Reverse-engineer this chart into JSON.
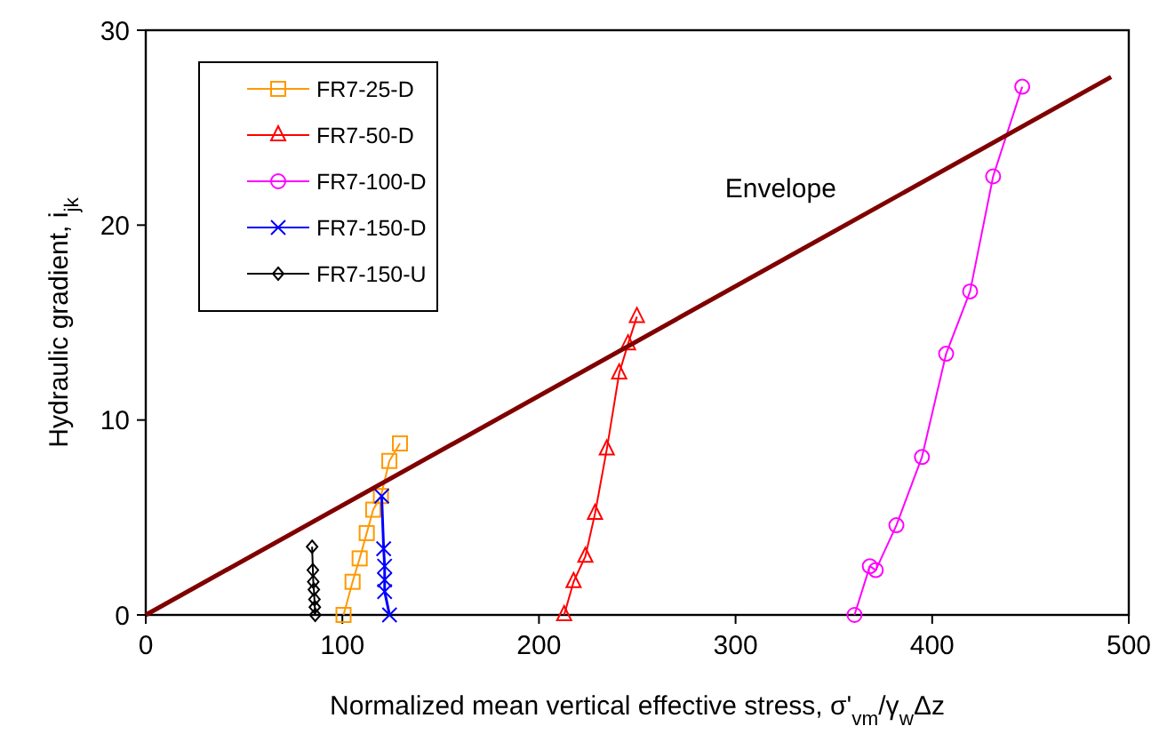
{
  "chart_data": {
    "type": "line",
    "xlabel": "Normalized mean vertical effective stress, σ'$_{vm}$/γ$_{w}$Δz",
    "ylabel": "Hydraulic gradient, i$_{jk}$",
    "xlim": [
      0,
      500
    ],
    "ylim": [
      0,
      30
    ],
    "xticks": [
      0,
      100,
      200,
      300,
      400,
      500
    ],
    "yticks": [
      0,
      10,
      20,
      30
    ],
    "grid": false,
    "legend": "top left",
    "line_style": "solid",
    "series": [
      {
        "name": "FR7-25-D",
        "color": "#ff9900",
        "marker": "square",
        "x": [
          100.6,
          105.2,
          108.8,
          112.4,
          115.7,
          119.6,
          123.9,
          129.3
        ],
        "values": [
          0,
          1.7,
          2.9,
          4.2,
          5.4,
          6.1,
          7.9,
          8.8
        ]
      },
      {
        "name": "FR7-50-D",
        "color": "#ff0000",
        "marker": "triangle",
        "x": [
          212.8,
          217.6,
          223.6,
          228.5,
          234.5,
          240.8,
          245.3,
          249.8
        ],
        "values": [
          0,
          1.7,
          3.0,
          5.2,
          8.5,
          12.4,
          13.9,
          15.3
        ]
      },
      {
        "name": "FR7-100-D",
        "color": "#ff00ff",
        "marker": "circle",
        "x": [
          360.5,
          368.3,
          371.3,
          381.8,
          394.8,
          407.1,
          419.3,
          431,
          445.8
        ],
        "values": [
          0,
          2.5,
          2.3,
          4.6,
          8.1,
          13.4,
          16.6,
          22.5,
          27.1
        ]
      },
      {
        "name": "FR7-150-D",
        "color": "#0000ff",
        "marker": "cross",
        "x": [
          124,
          121.5,
          121.5,
          121.5,
          121,
          120
        ],
        "values": [
          0,
          1.2,
          1.8,
          2.5,
          3.4,
          6.1
        ]
      },
      {
        "name": "FR7-150-U",
        "color": "#000000",
        "marker": "diamond",
        "x": [
          86.2,
          86,
          85.8,
          85.5,
          85.2,
          85,
          84.6
        ],
        "values": [
          0,
          0.4,
          0.8,
          1.3,
          1.7,
          2.3,
          3.5
        ]
      },
      {
        "name": "Envelope",
        "color": "#800000",
        "marker": "none",
        "x": [
          0,
          491
        ],
        "values": [
          0,
          27.6
        ]
      }
    ]
  }
}
